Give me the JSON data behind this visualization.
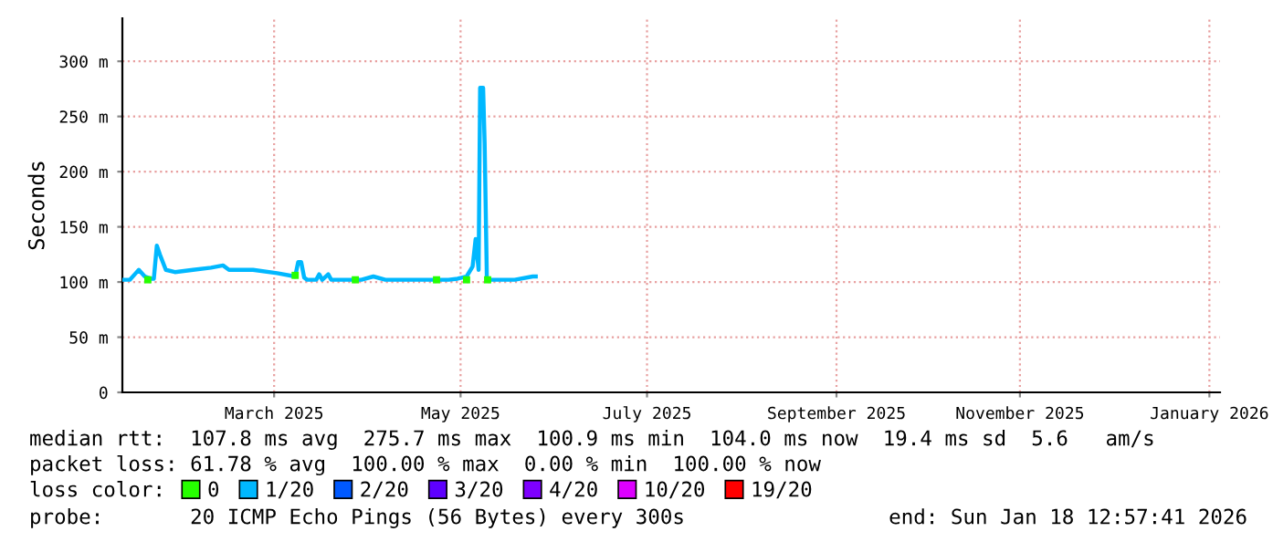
{
  "chart_data": {
    "type": "line",
    "ylabel": "Seconds",
    "legend_title": "loss color:",
    "legend": "bottom",
    "grid": true,
    "line_style": "solid",
    "marker": "none",
    "xlim": [
      "2025-01-18T12:57",
      "2026-01-18T12:57"
    ],
    "xticks": [
      {
        "value": "2025-03-10",
        "label": "March 2025"
      },
      {
        "value": "2025-05-11",
        "label": "May 2025"
      },
      {
        "value": "2025-07-12",
        "label": "July 2025"
      },
      {
        "value": "2025-09-13",
        "label": "September 2025"
      },
      {
        "value": "2025-11-13",
        "label": "November 2025"
      },
      {
        "value": "2026-01-15",
        "label": "January 2026"
      }
    ],
    "ylim": [
      0,
      339
    ],
    "yticks": [
      0,
      {
        "value": 50,
        "label": "50 m"
      },
      {
        "value": 100,
        "label": "100 m"
      },
      {
        "value": 150,
        "label": "150 m"
      },
      {
        "value": 200,
        "label": "200 m"
      },
      {
        "value": 250,
        "label": "250 m"
      },
      {
        "value": 300,
        "label": "300 m"
      }
    ],
    "series": [
      {
        "name": "0",
        "color": "#26ff00",
        "type": "scatter",
        "marker": "square",
        "x": [
          "2025-01-27",
          "2025-03-17",
          "2025-04-06",
          "2025-05-03",
          "2025-05-13",
          "2025-05-20"
        ],
        "values": [
          102,
          106,
          102,
          102,
          102,
          102
        ]
      },
      {
        "name": "1/20",
        "color": "#00b8ff",
        "x": [
          "2025-01-18T12:57",
          "2025-01-21",
          "2025-01-23",
          "2025-01-24",
          "2025-01-26",
          "2025-01-28",
          "2025-01-29",
          "2025-01-30",
          "2025-01-31",
          "2025-02-02",
          "2025-02-05",
          "2025-02-11",
          "2025-02-17",
          "2025-02-21",
          "2025-02-23",
          "2025-03-03",
          "2025-03-11",
          "2025-03-17",
          "2025-03-18",
          "2025-03-19",
          "2025-03-20",
          "2025-03-21",
          "2025-03-24",
          "2025-03-25",
          "2025-03-26",
          "2025-03-28",
          "2025-03-29",
          "2025-04-08",
          "2025-04-12",
          "2025-04-16",
          "2025-04-28",
          "2025-05-07",
          "2025-05-10",
          "2025-05-13",
          "2025-05-15",
          "2025-05-16",
          "2025-05-17",
          "2025-05-17T12:00",
          "2025-05-18T12:00",
          "2025-05-19",
          "2025-05-19T18:00",
          "2025-05-29",
          "2025-06-04",
          "2025-06-05"
        ],
        "values": [
          102,
          102,
          108,
          111,
          105,
          103,
          103,
          133,
          125,
          111,
          109,
          111,
          113,
          115,
          111,
          111,
          108,
          105,
          118,
          118,
          104,
          102,
          102,
          107,
          102,
          107,
          102,
          102,
          105,
          102,
          102,
          102,
          103,
          105,
          114,
          139,
          111,
          276,
          276,
          226,
          102,
          102,
          105,
          105
        ]
      },
      {
        "name": "2/20",
        "color": "#0059ff"
      },
      {
        "name": "3/20",
        "color": "#5e00ff"
      },
      {
        "name": "4/20",
        "color": "#7e00ff"
      },
      {
        "name": "10/20",
        "color": "#dd00ff"
      },
      {
        "name": "19/20",
        "color": "#ff0000"
      }
    ],
    "annotations": [
      "median rtt:  107.8 ms avg  275.7 ms max  100.9 ms min  104.0 ms now  19.4 ms sd  5.6   am/s",
      "packet loss: 61.78 % avg  100.00 % max  0.00 % min  100.00 % now",
      "probe:       20 ICMP Echo Pings (56 Bytes) every 300s",
      "end: Sun Jan 18 12:57:41 2026"
    ]
  }
}
